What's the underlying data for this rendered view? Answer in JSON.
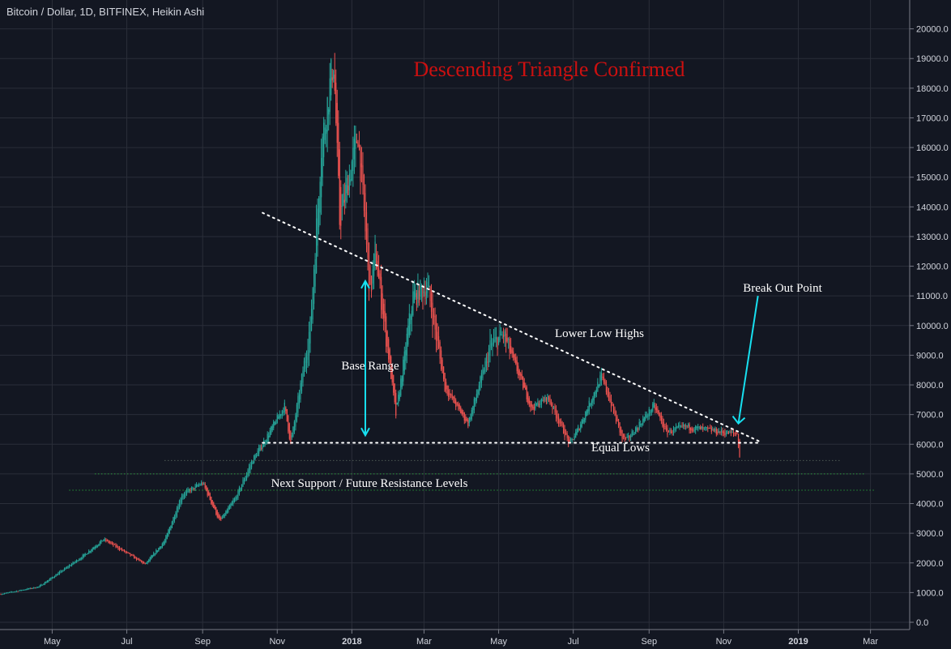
{
  "header": {
    "title": "Bitcoin / Dollar, 1D, BITFINEX, Heikin Ashi"
  },
  "colors": {
    "background": "#131722",
    "grid": "#2a2e39",
    "up": "#26a69a",
    "down": "#ef5350",
    "annotation_red": "#cc1010",
    "cyan": "#17e0f0",
    "support_green": "#2ecc40"
  },
  "chart_data": {
    "type": "candlestick",
    "title": "Bitcoin / Dollar, 1D, BITFINEX, Heikin Ashi",
    "ylim": [
      0,
      20500
    ],
    "y_ticks": [
      "0.0",
      "1000.0",
      "2000.0",
      "3000.0",
      "4000.0",
      "5000.0",
      "6000.0",
      "7000.0",
      "8000.0",
      "9000.0",
      "10000.0",
      "11000.0",
      "12000.0",
      "13000.0",
      "14000.0",
      "15000.0",
      "16000.0",
      "17000.0",
      "18000.0",
      "19000.0",
      "20000.0"
    ],
    "x_ticks": [
      {
        "label": "May",
        "date": "2017-05-01"
      },
      {
        "label": "Jul",
        "date": "2017-07-01"
      },
      {
        "label": "Sep",
        "date": "2017-09-01"
      },
      {
        "label": "Nov",
        "date": "2017-11-01"
      },
      {
        "label": "2018",
        "date": "2018-01-01"
      },
      {
        "label": "Mar",
        "date": "2018-03-01"
      },
      {
        "label": "May",
        "date": "2018-05-01"
      },
      {
        "label": "Jul",
        "date": "2018-07-01"
      },
      {
        "label": "Sep",
        "date": "2018-09-01"
      },
      {
        "label": "Nov",
        "date": "2018-11-01"
      },
      {
        "label": "2019",
        "date": "2019-01-01"
      },
      {
        "label": "Mar",
        "date": "2019-03-01"
      }
    ],
    "xlim": [
      "2017-03-20",
      "2019-03-30"
    ],
    "price_path": [
      [
        "2017-03-20",
        950
      ],
      [
        "2017-04-20",
        1200
      ],
      [
        "2017-05-25",
        2200
      ],
      [
        "2017-06-12",
        2800
      ],
      [
        "2017-07-16",
        1950
      ],
      [
        "2017-08-01",
        2750
      ],
      [
        "2017-08-15",
        4300
      ],
      [
        "2017-09-01",
        4700
      ],
      [
        "2017-09-15",
        3400
      ],
      [
        "2017-09-28",
        4200
      ],
      [
        "2017-10-12",
        5500
      ],
      [
        "2017-10-20",
        6000
      ],
      [
        "2017-11-07",
        7300
      ],
      [
        "2017-11-12",
        6000
      ],
      [
        "2017-11-28",
        10000
      ],
      [
        "2017-12-07",
        16000
      ],
      [
        "2017-12-17",
        19000
      ],
      [
        "2017-12-22",
        13500
      ],
      [
        "2018-01-06",
        16500
      ],
      [
        "2018-01-16",
        11000
      ],
      [
        "2018-01-20",
        12500
      ],
      [
        "2018-02-06",
        7000
      ],
      [
        "2018-02-20",
        11000
      ],
      [
        "2018-03-04",
        11300
      ],
      [
        "2018-03-18",
        7900
      ],
      [
        "2018-04-06",
        6700
      ],
      [
        "2018-04-24",
        9300
      ],
      [
        "2018-05-05",
        9700
      ],
      [
        "2018-05-28",
        7200
      ],
      [
        "2018-06-10",
        7600
      ],
      [
        "2018-06-28",
        6000
      ],
      [
        "2018-07-06",
        6600
      ],
      [
        "2018-07-24",
        8300
      ],
      [
        "2018-08-10",
        6200
      ],
      [
        "2018-08-14",
        6150
      ],
      [
        "2018-09-05",
        7300
      ],
      [
        "2018-09-15",
        6400
      ],
      [
        "2018-10-01",
        6600
      ],
      [
        "2018-10-15",
        6500
      ],
      [
        "2018-11-01",
        6400
      ],
      [
        "2018-11-12",
        6350
      ],
      [
        "2018-11-14",
        5600
      ]
    ],
    "annotations": {
      "headline": "Descending Triangle Confirmed",
      "resistance_label": "Lower Low Highs",
      "range_label": "Base Range",
      "support_label": "Equal Lows",
      "levels_label": "Next Support / Future Resistance Levels",
      "breakout_label": "Break Out Point"
    },
    "trendlines": [
      {
        "name": "descending-resistance",
        "from": [
          "2017-10-20",
          13800
        ],
        "to": [
          "2018-11-30",
          6100
        ]
      },
      {
        "name": "equal-lows-support",
        "from": [
          "2017-10-20",
          6050
        ],
        "to": [
          "2018-11-30",
          6050
        ]
      }
    ],
    "levels": [
      {
        "price": 5450,
        "from": "2017-08-01",
        "to": "2019-02-05"
      },
      {
        "price": 5000,
        "from": "2017-06-05",
        "to": "2019-02-25"
      },
      {
        "price": 4450,
        "from": "2017-05-15",
        "to": "2019-03-05"
      }
    ],
    "range_arrow": {
      "date": "2018-01-12",
      "from": 6300,
      "to": 11500
    },
    "breakout_arrow": {
      "from": [
        "2018-11-29",
        11000
      ],
      "to": [
        "2018-11-13",
        6700
      ]
    }
  }
}
